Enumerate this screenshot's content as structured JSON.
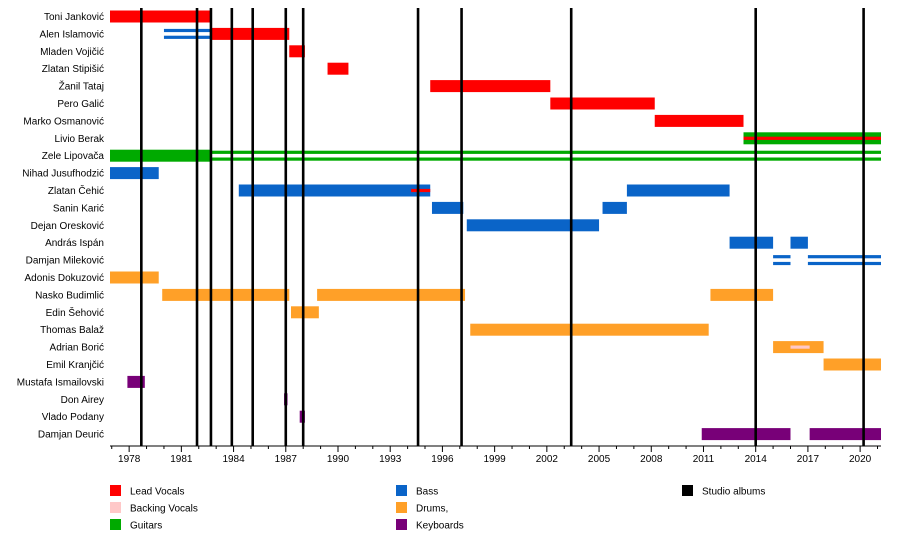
{
  "chart_data": {
    "type": "timeline",
    "title": "",
    "x_range": [
      1976.9,
      2021.2
    ],
    "x_ticks": [
      1978,
      1981,
      1984,
      1987,
      1990,
      1993,
      1996,
      1999,
      2002,
      2005,
      2008,
      2011,
      2014,
      2017,
      2020
    ],
    "members": [
      "Toni Janković",
      "Alen Islamović",
      "Mladen Vojičić",
      "Zlatan Stipišić",
      "Žanil Tataj",
      "Pero Galić",
      "Marko Osmanović",
      "Livio Berak",
      "Zele Lipovača",
      "Nihad Jusufhodzić",
      "Zlatan Čehić",
      "Sanin Karić",
      "Dejan Oresković",
      "András Ispán",
      "Damjan Mileković",
      "Adonis Dokuzović",
      "Nasko Budimlić",
      "Edin Šehović",
      "Thomas Balaž",
      "Adrian Borić",
      "Emil Kranjčić",
      "Mustafa Ismailovski",
      "Don Airey",
      "Vlado Podany",
      "Damjan Deurić"
    ],
    "roles": {
      "lead_vocals": {
        "label": "Lead Vocals",
        "color": "#ff0000"
      },
      "backing_vocals": {
        "label": "Backing Vocals",
        "color": "#ffc8c8"
      },
      "guitars": {
        "label": "Guitars",
        "color": "#00aa00"
      },
      "bass": {
        "label": "Bass",
        "color": "#0a64c8"
      },
      "drums": {
        "label": "Drums,",
        "color": "#ffa028"
      },
      "keyboards": {
        "label": "Keyboards",
        "color": "#780078"
      },
      "studio_albums": {
        "label": "Studio albums",
        "color": "#000000"
      }
    },
    "legend_order": [
      [
        "lead_vocals",
        "backing_vocals",
        "guitars"
      ],
      [
        "bass",
        "drums",
        "keyboards"
      ],
      [
        "studio_albums"
      ]
    ],
    "bars": [
      {
        "member": "Toni Janković",
        "role": "lead_vocals",
        "start": 1976.9,
        "end": 1982.7
      },
      {
        "member": "Alen Islamović",
        "role": "bass",
        "start": 1980.0,
        "end": 1984.3,
        "style": "double"
      },
      {
        "member": "Alen Islamović",
        "role": "lead_vocals",
        "start": 1982.7,
        "end": 1987.2
      },
      {
        "member": "Mladen Vojičić",
        "role": "lead_vocals",
        "start": 1987.2,
        "end": 1988.1
      },
      {
        "member": "Zlatan Stipišić",
        "role": "lead_vocals",
        "start": 1989.4,
        "end": 1990.6
      },
      {
        "member": "Žanil Tataj",
        "role": "lead_vocals",
        "start": 1995.3,
        "end": 2002.2
      },
      {
        "member": "Pero Galić",
        "role": "lead_vocals",
        "start": 2002.2,
        "end": 2008.2
      },
      {
        "member": "Marko Osmanović",
        "role": "lead_vocals",
        "start": 2008.2,
        "end": 2013.3
      },
      {
        "member": "Livio Berak",
        "role": "guitars",
        "start": 2013.3,
        "end": 2021.2
      },
      {
        "member": "Livio Berak",
        "role": "lead_vocals",
        "start": 2013.3,
        "end": 2021.2,
        "style": "inner"
      },
      {
        "member": "Zele Lipovača",
        "role": "guitars",
        "start": 1976.9,
        "end": 1982.7
      },
      {
        "member": "Zele Lipovača",
        "role": "guitars",
        "start": 1982.7,
        "end": 2021.2,
        "style": "double"
      },
      {
        "member": "Nihad Jusufhodzić",
        "role": "bass",
        "start": 1976.9,
        "end": 1979.7
      },
      {
        "member": "Zlatan Čehić",
        "role": "bass",
        "start": 1984.3,
        "end": 1995.3
      },
      {
        "member": "Zlatan Čehić",
        "role": "lead_vocals",
        "start": 1994.2,
        "end": 1995.3,
        "style": "inner"
      },
      {
        "member": "Zlatan Čehić",
        "role": "bass",
        "start": 2006.6,
        "end": 2012.5
      },
      {
        "member": "Sanin Karić",
        "role": "bass",
        "start": 1995.4,
        "end": 1997.2
      },
      {
        "member": "Sanin Karić",
        "role": "bass",
        "start": 2005.2,
        "end": 2006.6
      },
      {
        "member": "Dejan Oresković",
        "role": "bass",
        "start": 1997.4,
        "end": 2005.0
      },
      {
        "member": "András Ispán",
        "role": "bass",
        "start": 2012.5,
        "end": 2015.0
      },
      {
        "member": "András Ispán",
        "role": "bass",
        "start": 2016.0,
        "end": 2017.0
      },
      {
        "member": "Damjan Mileković",
        "role": "bass",
        "start": 2015.0,
        "end": 2016.0,
        "style": "double"
      },
      {
        "member": "Damjan Mileković",
        "role": "bass",
        "start": 2017.0,
        "end": 2021.2,
        "style": "double"
      },
      {
        "member": "Adonis Dokuzović",
        "role": "drums",
        "start": 1976.9,
        "end": 1979.7
      },
      {
        "member": "Nasko Budimlić",
        "role": "drums",
        "start": 1979.9,
        "end": 1987.2
      },
      {
        "member": "Nasko Budimlić",
        "role": "drums",
        "start": 1988.8,
        "end": 1997.3
      },
      {
        "member": "Nasko Budimlić",
        "role": "drums",
        "start": 2011.4,
        "end": 2015.0
      },
      {
        "member": "Edin Šehović",
        "role": "drums",
        "start": 1987.3,
        "end": 1988.9
      },
      {
        "member": "Thomas Balaž",
        "role": "drums",
        "start": 1997.6,
        "end": 2011.3
      },
      {
        "member": "Adrian Borić",
        "role": "drums",
        "start": 2015.0,
        "end": 2017.9
      },
      {
        "member": "Adrian Borić",
        "role": "backing_vocals",
        "start": 2016.0,
        "end": 2017.1,
        "style": "inner"
      },
      {
        "member": "Emil Kranjčić",
        "role": "drums",
        "start": 2017.9,
        "end": 2021.2
      },
      {
        "member": "Mustafa Ismailovski",
        "role": "keyboards",
        "start": 1977.9,
        "end": 1978.9
      },
      {
        "member": "Don Airey",
        "role": "keyboards",
        "start": 1986.9,
        "end": 1987.1
      },
      {
        "member": "Vlado Podany",
        "role": "keyboards",
        "start": 1987.8,
        "end": 1988.1
      },
      {
        "member": "Damjan Deurić",
        "role": "keyboards",
        "start": 2010.9,
        "end": 2016.0
      },
      {
        "member": "Damjan Deurić",
        "role": "keyboards",
        "start": 2017.1,
        "end": 2021.2
      }
    ],
    "studio_albums": [
      1978.7,
      1981.9,
      1982.7,
      1983.9,
      1985.1,
      1987.0,
      1988.0,
      1994.6,
      1997.1,
      2003.4,
      2014.0,
      2020.2
    ]
  }
}
